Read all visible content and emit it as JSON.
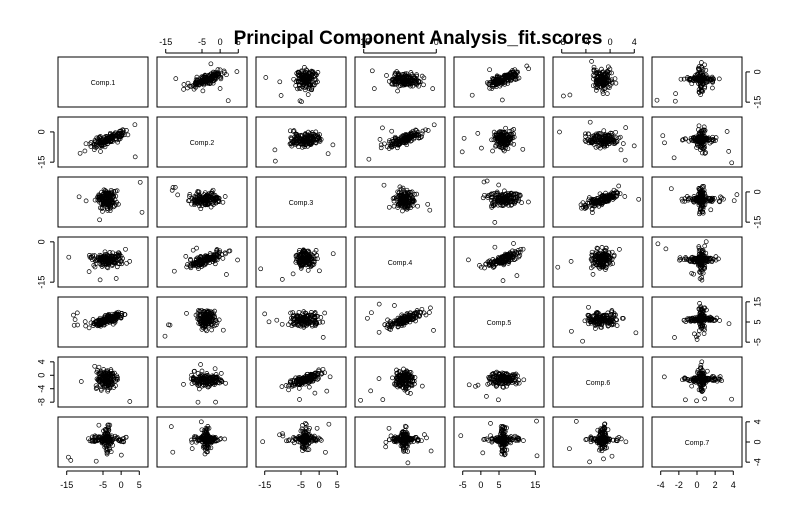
{
  "chart_data": {
    "type": "scatter",
    "subtype": "pairs-matrix",
    "title": "Principal Component Analysis_fit.scores",
    "variables": [
      "Comp.1",
      "Comp.2",
      "Comp.3",
      "Comp.4",
      "Comp.5",
      "Comp.6",
      "Comp.7"
    ],
    "axis_ticks": {
      "Comp.1": [
        "-15",
        "-5",
        "0",
        "5"
      ],
      "Comp.2": [
        "-15",
        "-5",
        "0",
        "5"
      ],
      "Comp.3": [
        "-15",
        "-5",
        "0",
        "5"
      ],
      "Comp.4": [
        "-15",
        "0"
      ],
      "Comp.5": [
        "-5",
        "0",
        "5",
        "15"
      ],
      "Comp.6": [
        "-8",
        "-4",
        "0",
        "4"
      ],
      "Comp.7": [
        "-4",
        "-2",
        "0",
        "2",
        "4"
      ]
    },
    "bottom_axis_labels": {
      "Comp.1": [
        "-15",
        "-5",
        "0",
        "5"
      ],
      "Comp.3": [
        "-15",
        "-5",
        "0",
        "5"
      ],
      "Comp.5": [
        "-5",
        "0",
        "5",
        "15"
      ],
      "Comp.7": [
        "-4",
        "-2",
        "0",
        "2",
        "4"
      ]
    },
    "top_axis_labels": {
      "Comp.2": [
        "-15",
        "-5",
        "0",
        "5"
      ],
      "Comp.4": [
        "-15",
        "0"
      ],
      "Comp.6": [
        "-8",
        "-4",
        "0",
        "4"
      ]
    },
    "left_axis_labels": {
      "Comp.2": [
        "-15",
        "0"
      ],
      "Comp.4": [
        "-15",
        "0"
      ],
      "Comp.6": [
        "-8",
        "-4",
        "0",
        "4"
      ]
    },
    "right_axis_labels": {
      "Comp.1": [
        "-15",
        "0"
      ],
      "Comp.3": [
        "-15",
        "0"
      ],
      "Comp.5": [
        "-5",
        "5",
        "15"
      ],
      "Comp.7": [
        "-4",
        "0",
        "4"
      ]
    },
    "marker": "open-circle",
    "grid": false
  }
}
